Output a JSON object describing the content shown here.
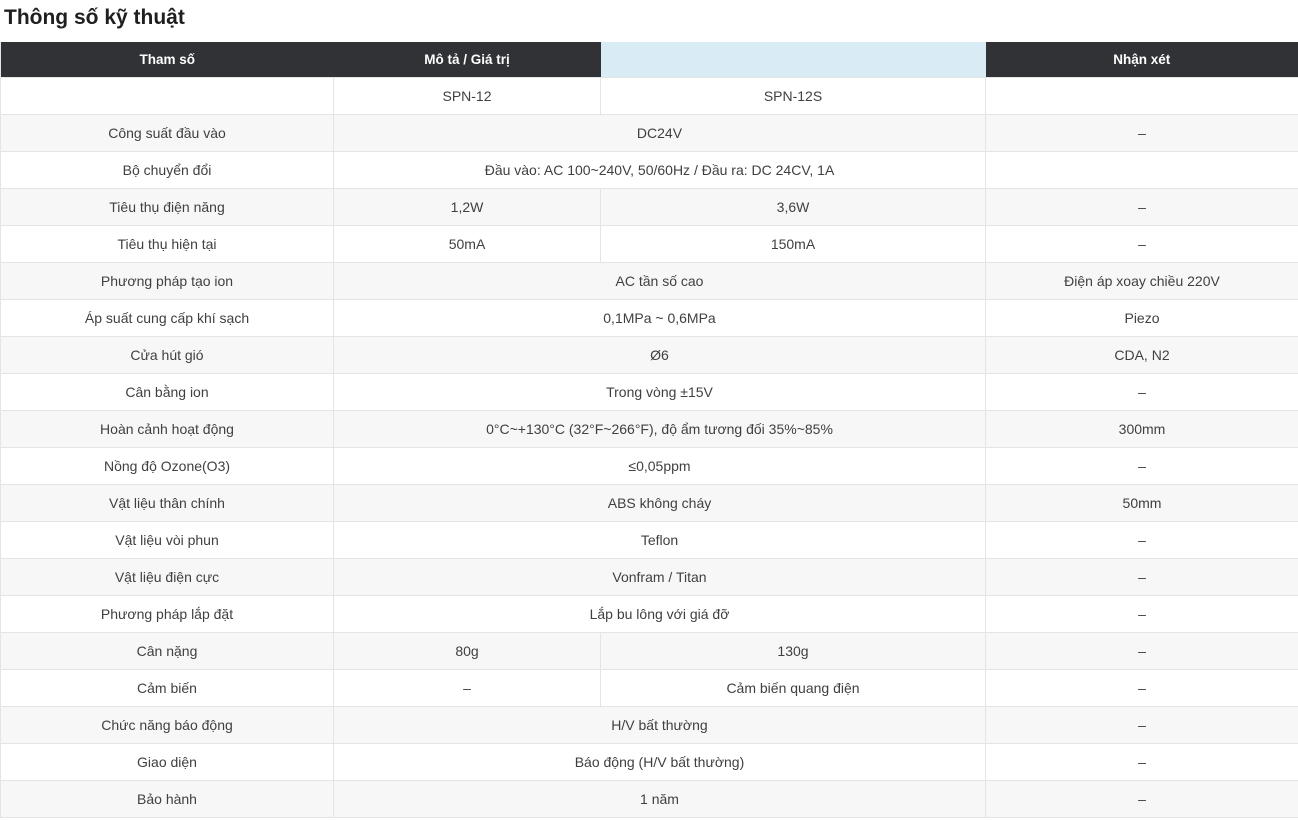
{
  "page_title": "Thông số kỹ thuật",
  "table": {
    "headers": [
      "Tham số",
      "Mô tả / Giá trị",
      "",
      "Nhận xét"
    ],
    "model_row": [
      "",
      "SPN-12",
      "SPN-12S",
      ""
    ],
    "rows": [
      {
        "param": "Công suất đầu vào",
        "span": "DC24V",
        "remark": "–"
      },
      {
        "param": "Bộ chuyển đổi",
        "span": "Đầu vào: AC 100~240V, 50/60Hz / Đầu ra: DC 24CV, 1A",
        "remark": ""
      },
      {
        "param": "Tiêu thụ điện năng",
        "v1": "1,2W",
        "v2": "3,6W",
        "remark": "–"
      },
      {
        "param": "Tiêu thụ hiện tại",
        "v1": "50mA",
        "v2": "150mA",
        "remark": "–"
      },
      {
        "param": "Phương pháp tạo ion",
        "span": "AC tần số cao",
        "remark": "Điện áp xoay chiều 220V"
      },
      {
        "param": "Áp suất cung cấp khí sạch",
        "span": "0,1MPa ~ 0,6MPa",
        "remark": "Piezo"
      },
      {
        "param": "Cửa hút gió",
        "span": "Ø6",
        "remark": "CDA, N2"
      },
      {
        "param": "Cân bằng ion",
        "span": "Trong vòng ±15V",
        "remark": "–"
      },
      {
        "param": "Hoàn cảnh hoạt động",
        "span": "0°C~+130°C (32°F~266°F), độ ẩm tương đối 35%~85%",
        "remark": "300mm"
      },
      {
        "param": "Nồng độ Ozone(O3)",
        "span": "≤0,05ppm",
        "remark": "–"
      },
      {
        "param": "Vật liệu thân chính",
        "span": "ABS không cháy",
        "remark": "50mm"
      },
      {
        "param": "Vật liệu vòi phun",
        "span": "Teflon",
        "remark": "–"
      },
      {
        "param": "Vật liệu điện cực",
        "span": "Vonfram / Titan",
        "remark": "–"
      },
      {
        "param": "Phương pháp lắp đặt",
        "span": "Lắp bu lông với giá đỡ",
        "remark": "–"
      },
      {
        "param": "Cân nặng",
        "v1": "80g",
        "v2": "130g",
        "remark": "–"
      },
      {
        "param": "Cảm biến",
        "v1": "–",
        "v2": "Cảm biến quang điện",
        "remark": "–"
      },
      {
        "param": "Chức năng báo động",
        "span": "H/V bất thường",
        "remark": "–"
      },
      {
        "param": "Giao diện",
        "span": "Báo động (H/V bất thường)",
        "remark": "–"
      },
      {
        "param": "Bảo hành",
        "span": "1 năm",
        "remark": "–"
      }
    ],
    "colors": {
      "header_bg": "#303236",
      "header_text": "#ffffff",
      "highlight_bg": "#d9ebf4",
      "row_alt_bg": "#f7f7f7",
      "border": "#e4e4e4"
    }
  }
}
